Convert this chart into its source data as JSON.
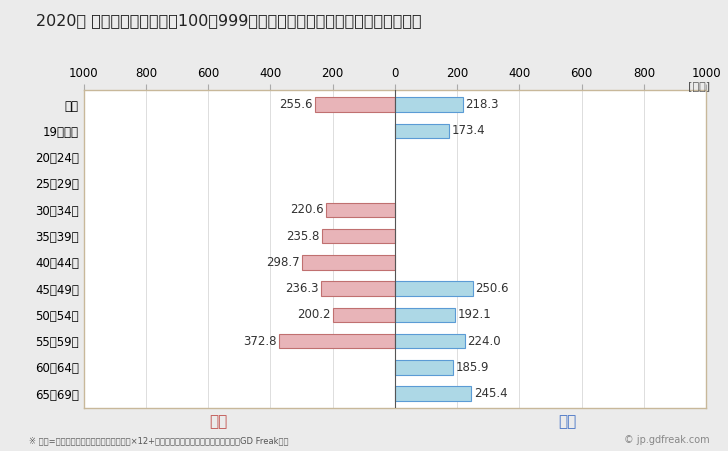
{
  "title": "2020年 民間企業（従業者数100〜999人）フルタイム労働者の男女別平均年収",
  "ylabel_unit": "[万円]",
  "categories": [
    "全体",
    "19歳以下",
    "20〜24歳",
    "25〜29歳",
    "30〜34歳",
    "35〜39歳",
    "40〜44歳",
    "45〜49歳",
    "50〜54歳",
    "55〜59歳",
    "60〜64歳",
    "65〜69歳"
  ],
  "female_values": [
    255.6,
    0,
    0,
    0,
    220.6,
    235.8,
    298.7,
    236.3,
    200.2,
    372.8,
    0,
    0
  ],
  "male_values": [
    218.3,
    173.4,
    0,
    0,
    0,
    0,
    0,
    250.6,
    192.1,
    224.0,
    185.9,
    245.4
  ],
  "female_color": "#e8b4b8",
  "male_color": "#add8e6",
  "female_border": "#c07070",
  "male_border": "#5b9bd5",
  "female_label": "女性",
  "male_label": "男性",
  "female_label_color": "#c0504d",
  "male_label_color": "#4472c4",
  "xlim": [
    -1000,
    1000
  ],
  "xticks": [
    -1000,
    -800,
    -600,
    -400,
    -200,
    0,
    200,
    400,
    600,
    800,
    1000
  ],
  "xtick_labels": [
    "1000",
    "800",
    "600",
    "400",
    "200",
    "0",
    "200",
    "400",
    "600",
    "800",
    "1000"
  ],
  "background_color": "#ebebeb",
  "plot_background": "#ffffff",
  "plot_border_color": "#c8b89a",
  "grid_color": "#d0d0d0",
  "footnote": "※ 年収=「きまって支給する現金給与額」×12+「年間賞与その他特別給与額」としてGD Freak推計",
  "watermark": "© jp.gdfreak.com",
  "title_fontsize": 11.5,
  "tick_fontsize": 8.5,
  "label_fontsize": 8.5,
  "bar_height": 0.55
}
